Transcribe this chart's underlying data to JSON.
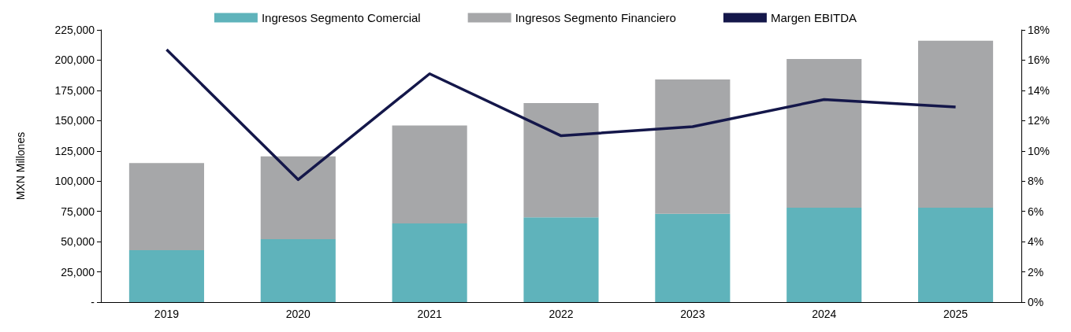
{
  "chart_data": {
    "type": "bar",
    "stacked": true,
    "ylabel": "MXN Millones",
    "categories": [
      "2019",
      "2020",
      "2021",
      "2022",
      "2023",
      "2024",
      "2025"
    ],
    "series": [
      {
        "name": "Ingresos Segmento Comercial",
        "color": "#5fb3bb",
        "values": [
          43000,
          52000,
          65000,
          70000,
          73000,
          78000,
          78000
        ]
      },
      {
        "name": "Ingresos Segmento Financiero",
        "color": "#a6a7a9",
        "values": [
          72000,
          68500,
          81000,
          94500,
          111000,
          123000,
          138000
        ]
      },
      {
        "name": "Margen EBITDA",
        "type": "line",
        "axis": "y2",
        "color": "#14174a",
        "values": [
          16.7,
          8.1,
          15.1,
          11.0,
          11.6,
          13.4,
          12.9
        ]
      }
    ],
    "ylim": [
      0,
      225000
    ],
    "yticks": [
      {
        "value": 0,
        "label": "-"
      },
      {
        "value": 25000,
        "label": "25,000"
      },
      {
        "value": 50000,
        "label": "50,000"
      },
      {
        "value": 75000,
        "label": "75,000"
      },
      {
        "value": 100000,
        "label": "100,000"
      },
      {
        "value": 125000,
        "label": "125,000"
      },
      {
        "value": 150000,
        "label": "150,000"
      },
      {
        "value": 175000,
        "label": "175,000"
      },
      {
        "value": 200000,
        "label": "200,000"
      },
      {
        "value": 225000,
        "label": "225,000"
      }
    ],
    "y2lim": [
      0,
      18
    ],
    "y2ticks": [
      {
        "value": 0,
        "label": "0%"
      },
      {
        "value": 2,
        "label": "2%"
      },
      {
        "value": 4,
        "label": "4%"
      },
      {
        "value": 6,
        "label": "6%"
      },
      {
        "value": 8,
        "label": "8%"
      },
      {
        "value": 10,
        "label": "10%"
      },
      {
        "value": 12,
        "label": "12%"
      },
      {
        "value": 14,
        "label": "14%"
      },
      {
        "value": 16,
        "label": "16%"
      },
      {
        "value": 18,
        "label": "18%"
      }
    ],
    "grid": false,
    "legend": "top",
    "marker": "none",
    "line_style": "solid"
  }
}
